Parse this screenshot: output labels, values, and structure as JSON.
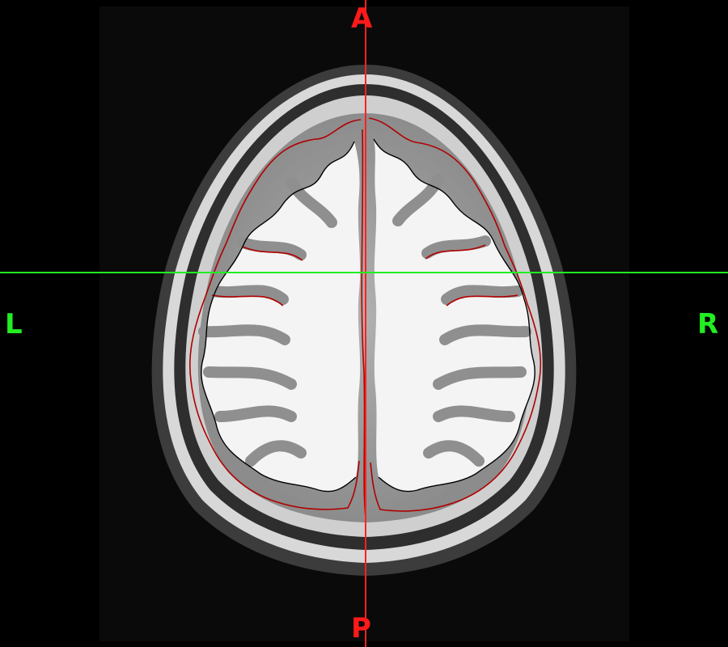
{
  "orientation_labels": {
    "anterior": "A",
    "posterior": "P",
    "left": "L",
    "right": "R"
  },
  "colors": {
    "crosshair_vertical": "#ff2222",
    "crosshair_horizontal": "#22ee22",
    "pial_contour": "#b00000",
    "white_contour": "#000000"
  }
}
